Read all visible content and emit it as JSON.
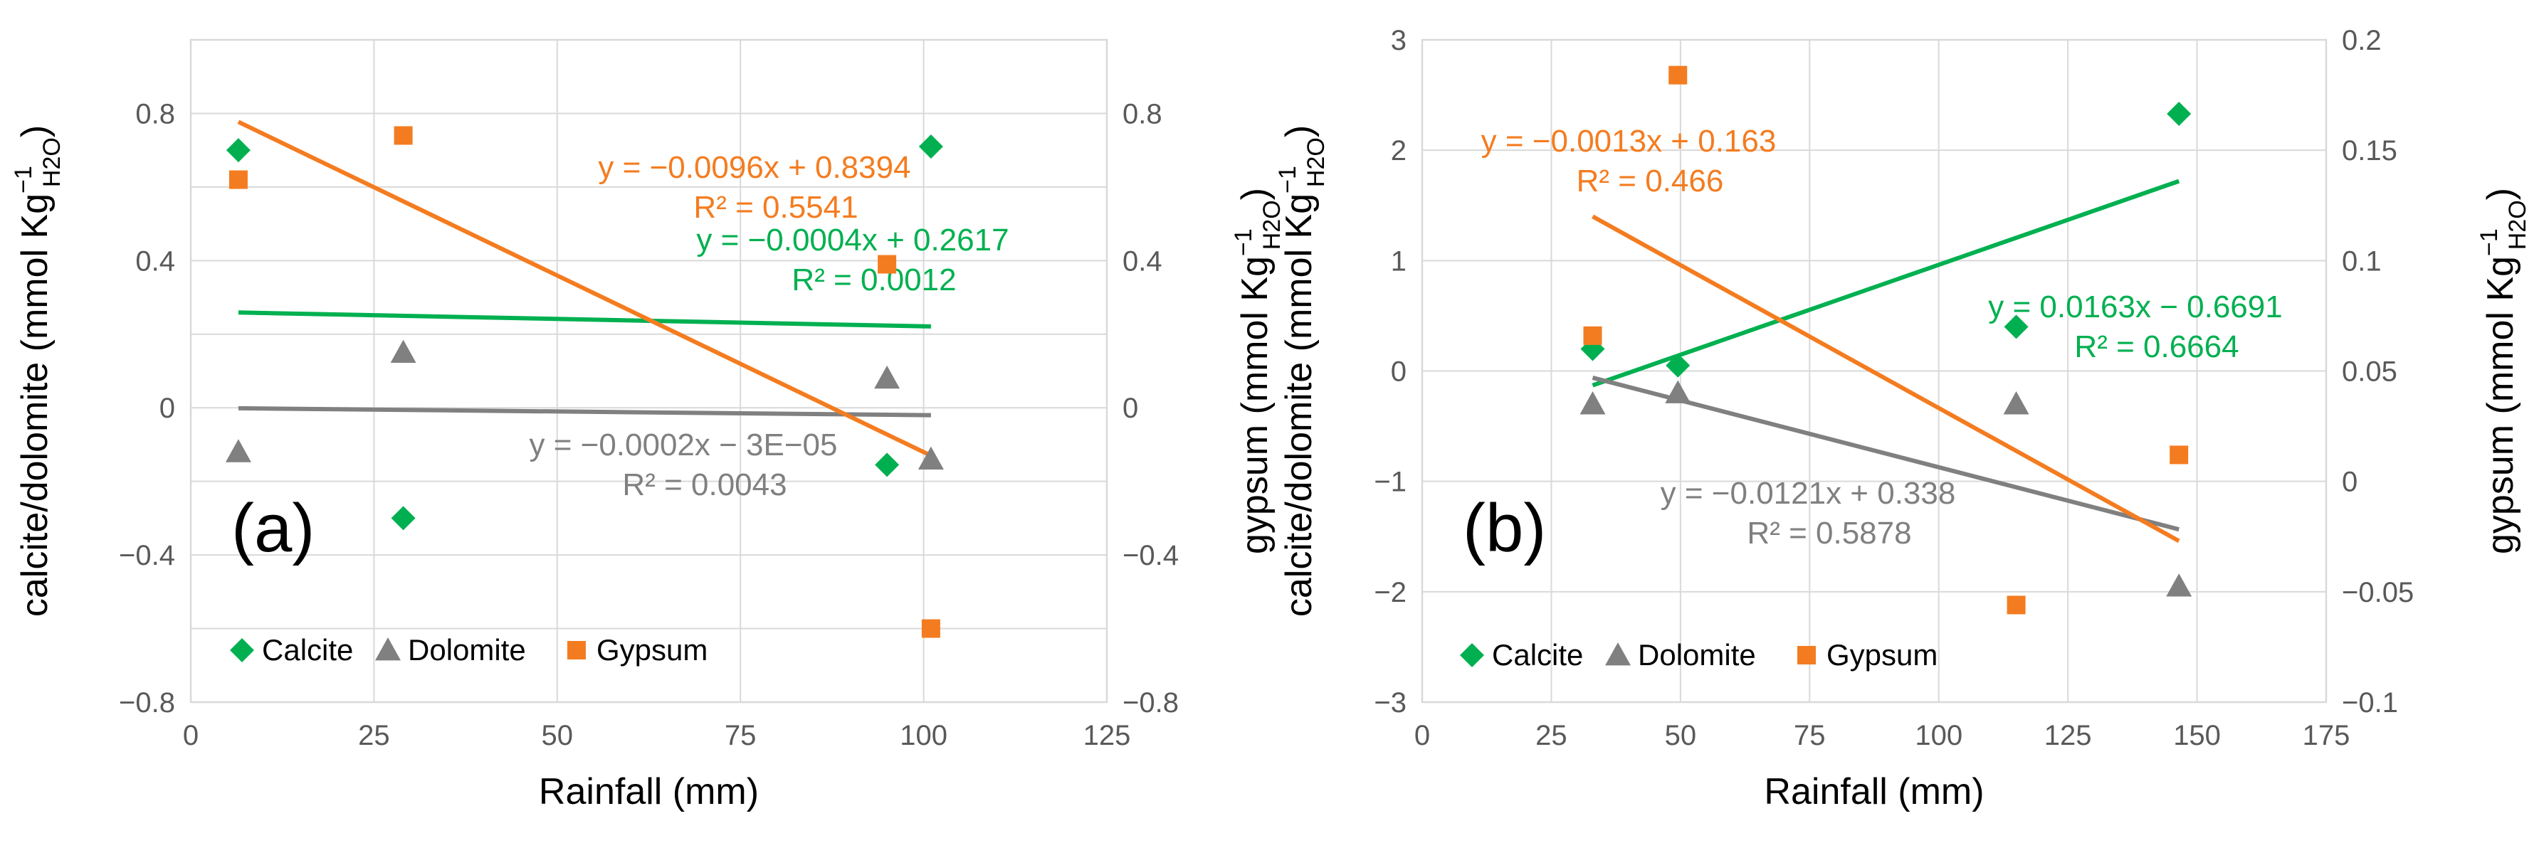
{
  "colors": {
    "calcite": "#00b050",
    "dolomite": "#808080",
    "gypsum": "#f47c20"
  },
  "chart_data": [
    {
      "type": "scatter",
      "panel_label": "(a)",
      "xlabel": "Rainfall (mm)",
      "ylabel_left": {
        "main": "calcite/dolomite (mmol Kg",
        "sup": "−1",
        "sub": "H2O",
        "close": ")"
      },
      "ylabel_right": {
        "main": "gypsum (mmol Kg",
        "sup": "−1",
        "sub": "H2O",
        "close": ")"
      },
      "xlim": [
        0,
        125
      ],
      "xticks": [
        0,
        25,
        50,
        75,
        100,
        125
      ],
      "xtick_labels": [
        "0",
        "25",
        "50",
        "75",
        "100",
        "125"
      ],
      "ylim_left": [
        -0.8,
        1.0
      ],
      "yticks_left": [
        -0.8,
        -0.4,
        0,
        0.4,
        0.8
      ],
      "ytick_labels_left": [
        "−0.8",
        "−0.4",
        "0",
        "0.4",
        "0.8"
      ],
      "ylim_right": [
        -0.8,
        1.0
      ],
      "yticks_right": [
        -0.8,
        -0.4,
        0,
        0.4,
        0.8
      ],
      "ytick_labels_right": [
        "−0.8",
        "−0.4",
        "0",
        "0.4",
        "0.8"
      ],
      "legend": [
        "Calcite",
        "Dolomite",
        "Gypsum"
      ],
      "series": [
        {
          "name": "Calcite",
          "axis": "left",
          "marker": "diamond",
          "x": [
            6.5,
            29,
            95,
            101
          ],
          "y": [
            0.7,
            -0.3,
            -0.155,
            0.71
          ],
          "trend": {
            "x": [
              6.5,
              101
            ],
            "y": [
              0.259,
              0.221
            ]
          },
          "equation": "y = −0.0004x + 0.2617",
          "r2": "R² = 0.0012"
        },
        {
          "name": "Dolomite",
          "axis": "left",
          "marker": "triangle",
          "x": [
            6.5,
            29,
            95,
            101
          ],
          "y": [
            -0.12,
            0.15,
            0.08,
            -0.14
          ],
          "trend": {
            "x": [
              6.5,
              101
            ],
            "y": [
              -0.0013,
              -0.0202
            ]
          },
          "equation": "y = −0.0002x − 3E−05",
          "r2": "R² = 0.0043"
        },
        {
          "name": "Gypsum",
          "axis": "right",
          "marker": "square",
          "x": [
            6.5,
            29,
            95,
            101
          ],
          "y": [
            0.62,
            0.74,
            0.39,
            -0.6
          ],
          "trend": {
            "x": [
              6.5,
              101
            ],
            "y": [
              0.777,
              -0.13
            ]
          },
          "equation": "y = −0.0096x + 0.8394",
          "r2": "R² = 0.5541"
        }
      ]
    },
    {
      "type": "scatter",
      "panel_label": "(b)",
      "xlabel": "Rainfall (mm)",
      "ylabel_left": {
        "main": "calcite/dolomite (mmol Kg",
        "sup": "−1",
        "sub": "H2O",
        "close": ")"
      },
      "ylabel_right": {
        "main": "gypsum (mmol Kg",
        "sup": "−1",
        "sub": "H2O",
        "close": ")"
      },
      "xlim": [
        0,
        175
      ],
      "xticks": [
        0,
        25,
        50,
        75,
        100,
        125,
        150,
        175
      ],
      "xtick_labels": [
        "0",
        "25",
        "50",
        "75",
        "100",
        "125",
        "150",
        "175"
      ],
      "ylim_left": [
        -3,
        3
      ],
      "yticks_left": [
        -3,
        -2,
        -1,
        0,
        1,
        2,
        3
      ],
      "ytick_labels_left": [
        "−3",
        "−2",
        "−1",
        "0",
        "1",
        "2",
        "3"
      ],
      "ylim_right": [
        -0.1,
        0.2
      ],
      "yticks_right": [
        -0.1,
        -0.05,
        0,
        0.05,
        0.1,
        0.15,
        0.2
      ],
      "ytick_labels_right": [
        "−0.1",
        "−0.05",
        "0",
        "0.05",
        "0.1",
        "0.15",
        "0.2"
      ],
      "legend": [
        "Calcite",
        "Dolomite",
        "Gypsum"
      ],
      "series": [
        {
          "name": "Calcite",
          "axis": "left",
          "marker": "diamond",
          "x": [
            33,
            49.5,
            115,
            146.5
          ],
          "y": [
            0.2,
            0.05,
            0.4,
            2.33
          ],
          "trend": {
            "x": [
              33,
              146.5
            ],
            "y": [
              -0.13,
              1.72
            ]
          },
          "equation": "y = 0.0163x − 0.6691",
          "r2": "R² = 0.6664"
        },
        {
          "name": "Dolomite",
          "axis": "left",
          "marker": "triangle",
          "x": [
            33,
            49.5,
            115,
            146.5
          ],
          "y": [
            -0.3,
            -0.2,
            -0.3,
            -1.95
          ],
          "trend": {
            "x": [
              33,
              146.5
            ],
            "y": [
              -0.061,
              -1.435
            ]
          },
          "equation": "y = −0.0121x + 0.338",
          "r2": "R² = 0.5878"
        },
        {
          "name": "Gypsum",
          "axis": "right",
          "marker": "square",
          "x": [
            33,
            49.5,
            115,
            146.5
          ],
          "y": [
            0.066,
            0.184,
            -0.056,
            0.012
          ],
          "trend": {
            "x": [
              33,
              146.5
            ],
            "y": [
              0.12,
              -0.027
            ]
          },
          "equation": "y = −0.0013x + 0.163",
          "r2": "R² = 0.466"
        }
      ]
    }
  ]
}
